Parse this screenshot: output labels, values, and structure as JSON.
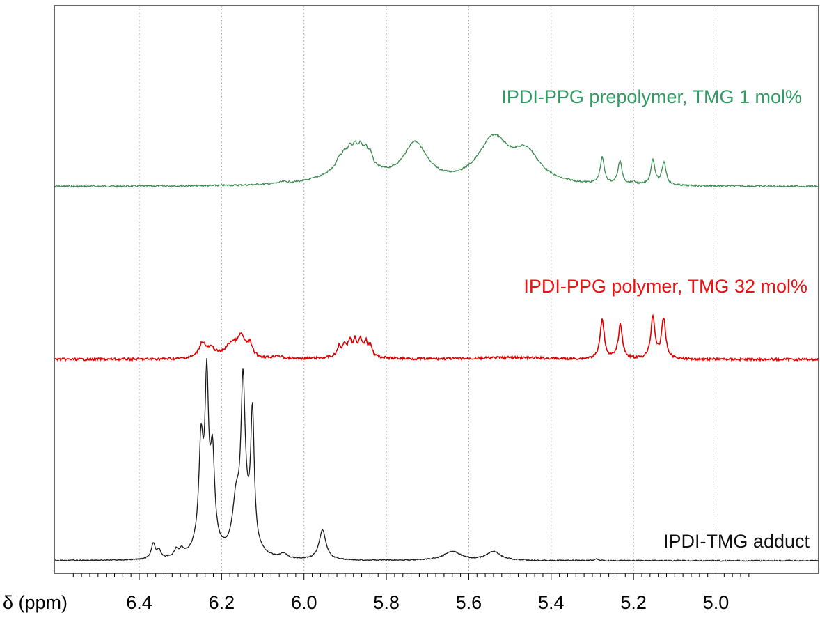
{
  "chart_data": {
    "type": "line",
    "title": "",
    "xlabel": "δ (ppm)",
    "ylabel": "",
    "x_reversed": true,
    "xlim": [
      6.55,
      4.92
    ],
    "grid": "vertical dotted",
    "x_ticks": [
      6.4,
      6.2,
      6.0,
      5.8,
      5.6,
      5.4,
      5.2,
      5.0
    ],
    "x_tick_labels": [
      "6.4",
      "6.2",
      "6.0",
      "5.8",
      "5.6",
      "5.4",
      "5.2",
      "5.0"
    ],
    "series": [
      {
        "name": "IPDI-PPG prepolymer, TMG 1 mol%",
        "color": "#3a8a50",
        "label_color": "#2e9c63",
        "peaks": [
          {
            "x": 6.05,
            "h": 0.03,
            "w": 0.012
          },
          {
            "x": 5.915,
            "h": 0.12,
            "w": 0.006
          },
          {
            "x": 5.902,
            "h": 0.14,
            "w": 0.006
          },
          {
            "x": 5.889,
            "h": 0.16,
            "w": 0.006
          },
          {
            "x": 5.876,
            "h": 0.18,
            "w": 0.006
          },
          {
            "x": 5.863,
            "h": 0.2,
            "w": 0.006
          },
          {
            "x": 5.85,
            "h": 0.21,
            "w": 0.006
          },
          {
            "x": 5.839,
            "h": 0.2,
            "w": 0.006
          },
          {
            "x": 5.88,
            "h": 0.55,
            "w": 0.055
          },
          {
            "x": 5.73,
            "h": 0.75,
            "w": 0.035
          },
          {
            "x": 5.54,
            "h": 0.85,
            "w": 0.045
          },
          {
            "x": 5.46,
            "h": 0.55,
            "w": 0.04
          },
          {
            "x": 5.276,
            "h": 0.5,
            "w": 0.006
          },
          {
            "x": 5.233,
            "h": 0.44,
            "w": 0.006
          },
          {
            "x": 5.2,
            "h": 0.05,
            "w": 0.008
          },
          {
            "x": 5.153,
            "h": 0.48,
            "w": 0.006
          },
          {
            "x": 5.126,
            "h": 0.44,
            "w": 0.006
          }
        ]
      },
      {
        "name": "IPDI-PPG polymer, TMG 32 mol%",
        "color": "#e00000",
        "label_color": "#ee1111",
        "peaks": [
          {
            "x": 6.247,
            "h": 0.35,
            "w": 0.01
          },
          {
            "x": 6.225,
            "h": 0.2,
            "w": 0.012
          },
          {
            "x": 6.175,
            "h": 0.35,
            "w": 0.02
          },
          {
            "x": 6.152,
            "h": 0.42,
            "w": 0.01
          },
          {
            "x": 6.132,
            "h": 0.3,
            "w": 0.008
          },
          {
            "x": 6.065,
            "h": 0.07,
            "w": 0.01
          },
          {
            "x": 5.915,
            "h": 0.22,
            "w": 0.005
          },
          {
            "x": 5.902,
            "h": 0.26,
            "w": 0.005
          },
          {
            "x": 5.889,
            "h": 0.3,
            "w": 0.005
          },
          {
            "x": 5.876,
            "h": 0.32,
            "w": 0.005
          },
          {
            "x": 5.863,
            "h": 0.32,
            "w": 0.005
          },
          {
            "x": 5.85,
            "h": 0.3,
            "w": 0.005
          },
          {
            "x": 5.839,
            "h": 0.28,
            "w": 0.005
          },
          {
            "x": 5.88,
            "h": 0.12,
            "w": 0.04
          },
          {
            "x": 5.5,
            "h": 0.04,
            "w": 0.1
          },
          {
            "x": 5.276,
            "h": 0.95,
            "w": 0.006
          },
          {
            "x": 5.232,
            "h": 0.82,
            "w": 0.006
          },
          {
            "x": 5.153,
            "h": 1.0,
            "w": 0.006
          },
          {
            "x": 5.127,
            "h": 0.95,
            "w": 0.006
          }
        ]
      },
      {
        "name": "IPDI-TMG adduct",
        "color": "#1a1a1a",
        "label_color": "#111111",
        "peaks": [
          {
            "x": 6.366,
            "h": 0.1,
            "w": 0.006
          },
          {
            "x": 6.352,
            "h": 0.05,
            "w": 0.006
          },
          {
            "x": 6.31,
            "h": 0.05,
            "w": 0.006
          },
          {
            "x": 6.297,
            "h": 0.04,
            "w": 0.006
          },
          {
            "x": 6.25,
            "h": 0.62,
            "w": 0.006
          },
          {
            "x": 6.236,
            "h": 0.95,
            "w": 0.005
          },
          {
            "x": 6.222,
            "h": 0.55,
            "w": 0.006
          },
          {
            "x": 6.238,
            "h": 0.2,
            "w": 0.02
          },
          {
            "x": 6.165,
            "h": 0.3,
            "w": 0.01
          },
          {
            "x": 6.148,
            "h": 1.0,
            "w": 0.006
          },
          {
            "x": 6.125,
            "h": 0.86,
            "w": 0.005
          },
          {
            "x": 6.14,
            "h": 0.18,
            "w": 0.02
          },
          {
            "x": 6.05,
            "h": 0.03,
            "w": 0.01
          },
          {
            "x": 5.955,
            "h": 0.2,
            "w": 0.01
          },
          {
            "x": 5.64,
            "h": 0.06,
            "w": 0.025
          },
          {
            "x": 5.54,
            "h": 0.06,
            "w": 0.02
          },
          {
            "x": 5.29,
            "h": 0.015,
            "w": 0.004
          }
        ]
      }
    ]
  }
}
